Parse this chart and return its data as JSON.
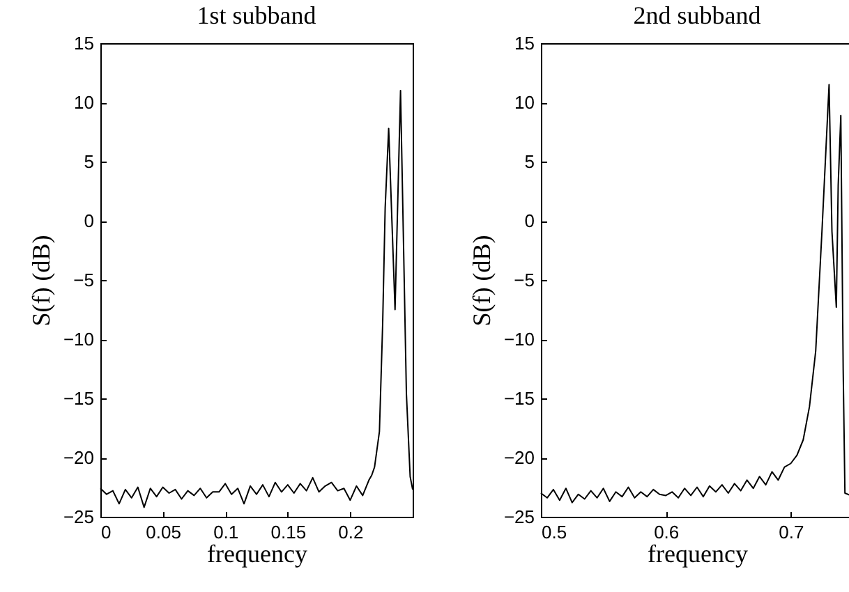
{
  "chart_data": [
    {
      "type": "line",
      "title": "1st subband",
      "xlabel": "frequency",
      "ylabel": "S(f) (dB)",
      "xlim": [
        0,
        0.25
      ],
      "xticks": [
        0,
        0.05,
        0.1,
        0.15,
        0.2
      ],
      "ylim": [
        -25,
        15
      ],
      "yticks": [
        -25,
        -20,
        -15,
        -10,
        -5,
        0,
        5,
        10,
        15
      ],
      "series": [
        {
          "color": "#000000",
          "x": [
            0,
            0.005,
            0.01,
            0.015,
            0.02,
            0.025,
            0.03,
            0.035,
            0.04,
            0.045,
            0.05,
            0.055,
            0.06,
            0.065,
            0.07,
            0.075,
            0.08,
            0.085,
            0.09,
            0.095,
            0.1,
            0.105,
            0.11,
            0.115,
            0.12,
            0.125,
            0.13,
            0.135,
            0.14,
            0.145,
            0.15,
            0.155,
            0.16,
            0.165,
            0.17,
            0.175,
            0.18,
            0.185,
            0.19,
            0.195,
            0.2,
            0.205,
            0.21,
            0.215,
            0.2172,
            0.2195,
            0.2234,
            0.226,
            0.228,
            0.2308,
            0.2359,
            0.2403,
            0.2425,
            0.245,
            0.248,
            0.25
          ],
          "values": [
            -22.6,
            -23.1,
            -22.8,
            -23.9,
            -22.7,
            -23.4,
            -22.5,
            -24.2,
            -22.6,
            -23.3,
            -22.5,
            -23.0,
            -22.7,
            -23.5,
            -22.8,
            -23.2,
            -22.6,
            -23.4,
            -22.9,
            -22.9,
            -22.2,
            -23.1,
            -22.6,
            -23.9,
            -22.4,
            -23.1,
            -22.3,
            -23.3,
            -22.1,
            -22.9,
            -22.3,
            -23.0,
            -22.2,
            -22.8,
            -21.7,
            -22.9,
            -22.4,
            -22.1,
            -22.8,
            -22.6,
            -23.6,
            -22.4,
            -23.2,
            -21.9,
            -21.5,
            -20.8,
            -17.8,
            -8.7,
            1.1,
            7.8,
            -7.5,
            11,
            -0.9,
            -14.6,
            -21.6,
            -22.7
          ]
        }
      ]
    },
    {
      "type": "line",
      "title": "2nd subband",
      "xlabel": "frequency",
      "ylabel": "S(f) (dB)",
      "xlim": [
        0.5,
        0.75
      ],
      "xticks": [
        0.5,
        0.6,
        0.7
      ],
      "ylim": [
        -25,
        15
      ],
      "yticks": [
        -25,
        -20,
        -15,
        -10,
        -5,
        0,
        5,
        10,
        15
      ],
      "series": [
        {
          "color": "#000000",
          "x": [
            0.5,
            0.505,
            0.51,
            0.515,
            0.52,
            0.525,
            0.53,
            0.535,
            0.54,
            0.545,
            0.55,
            0.555,
            0.56,
            0.565,
            0.57,
            0.575,
            0.58,
            0.585,
            0.59,
            0.595,
            0.6,
            0.605,
            0.61,
            0.615,
            0.62,
            0.625,
            0.63,
            0.635,
            0.64,
            0.645,
            0.65,
            0.655,
            0.66,
            0.665,
            0.67,
            0.675,
            0.68,
            0.685,
            0.69,
            0.695,
            0.7,
            0.705,
            0.71,
            0.715,
            0.72,
            0.725,
            0.7307,
            0.733,
            0.7365,
            0.738,
            0.7401,
            0.742,
            0.7434,
            0.748
          ],
          "values": [
            -23.0,
            -23.4,
            -22.7,
            -23.6,
            -22.6,
            -23.8,
            -23.1,
            -23.5,
            -22.8,
            -23.4,
            -22.6,
            -23.7,
            -22.9,
            -23.3,
            -22.5,
            -23.4,
            -22.9,
            -23.3,
            -22.7,
            -23.1,
            -23.2,
            -22.9,
            -23.4,
            -22.6,
            -23.2,
            -22.5,
            -23.3,
            -22.4,
            -22.9,
            -22.3,
            -23.0,
            -22.2,
            -22.8,
            -21.9,
            -22.6,
            -21.6,
            -22.3,
            -21.2,
            -21.9,
            -20.8,
            -20.5,
            -19.8,
            -18.5,
            -15.7,
            -11,
            -0.9,
            11.5,
            -0.9,
            -7.3,
            3,
            8.9,
            -12.6,
            -23,
            -23.2
          ]
        }
      ]
    }
  ]
}
